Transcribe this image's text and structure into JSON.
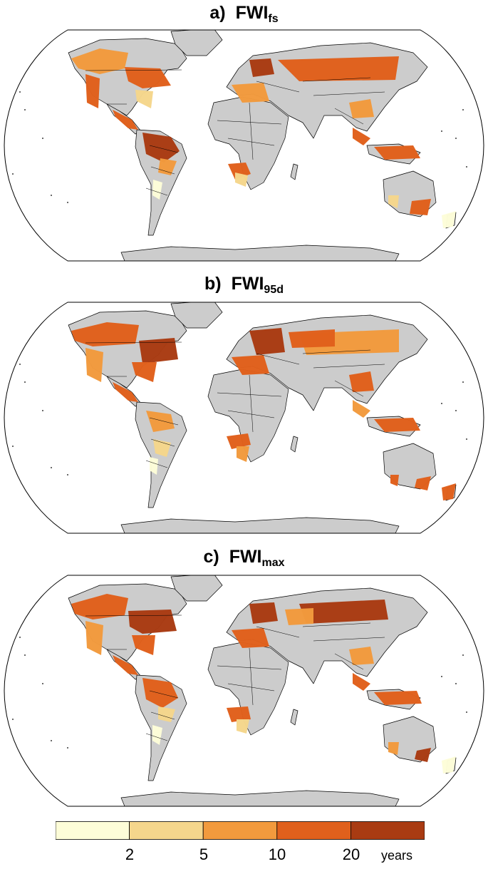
{
  "panels": [
    {
      "tag": "a)",
      "title": "FWI",
      "subscript": "fs"
    },
    {
      "tag": "b)",
      "title": "FWI",
      "subscript": "95d"
    },
    {
      "tag": "c)",
      "title": "FWI",
      "subscript": "max"
    }
  ],
  "colorbar": {
    "bins": [
      {
        "color": "#fdfdd8"
      },
      {
        "color": "#f5d68c"
      },
      {
        "color": "#f29a3d"
      },
      {
        "color": "#e0601c"
      },
      {
        "color": "#a93b12"
      }
    ],
    "tick_labels": [
      "2",
      "5",
      "10",
      "20"
    ],
    "unit": "years"
  },
  "colors": {
    "land": "#cccccc",
    "ocean": "#ffffff",
    "border": "#000000"
  }
}
